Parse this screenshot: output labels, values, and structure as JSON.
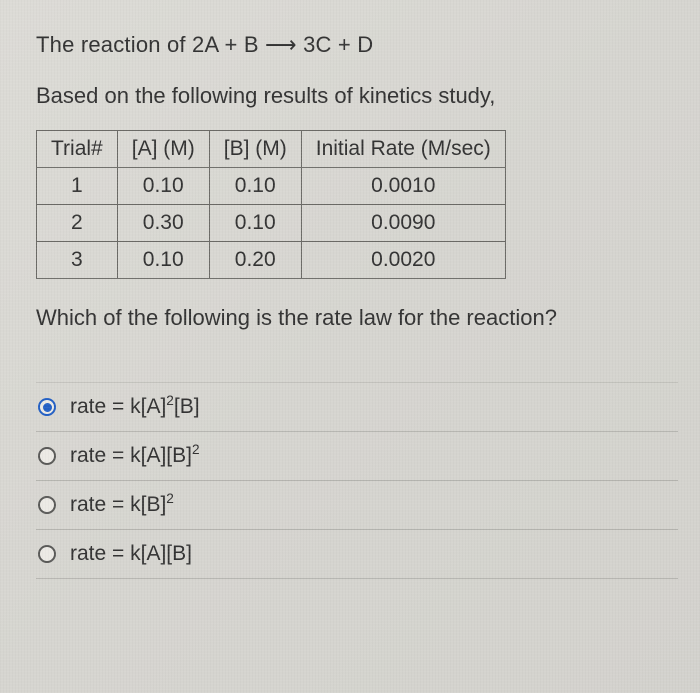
{
  "reaction_line": "The reaction of 2A + B ⟶ 3C + D",
  "based_line": "Based on the following results of kinetics study,",
  "table": {
    "headers": [
      "Trial#",
      "[A] (M)",
      "[B] (M)",
      "Initial Rate (M/sec)"
    ],
    "rows": [
      [
        "1",
        "0.10",
        "0.10",
        "0.0010"
      ],
      [
        "2",
        "0.30",
        "0.10",
        "0.0090"
      ],
      [
        "3",
        "0.10",
        "0.20",
        "0.0020"
      ]
    ],
    "border_color": "#6b6a66",
    "cell_fontsize": 21
  },
  "question_line": "Which of the following is the rate law for the reaction?",
  "options": [
    {
      "html": "rate = k[A]<sup>2</sup>[B]",
      "selected": true
    },
    {
      "html": "rate = k[A][B]<sup>2</sup>",
      "selected": false
    },
    {
      "html": "rate = k[B]<sup>2</sup>",
      "selected": false
    },
    {
      "html": "rate = k[A][B]",
      "selected": false
    }
  ],
  "style": {
    "background_color": "#d8d7d3",
    "text_color": "#333333",
    "body_fontsize": 22,
    "radio_selected_color": "#2360c5",
    "radio_border_color": "#5a5a58",
    "divider_color": "rgba(120,120,115,0.35)"
  }
}
